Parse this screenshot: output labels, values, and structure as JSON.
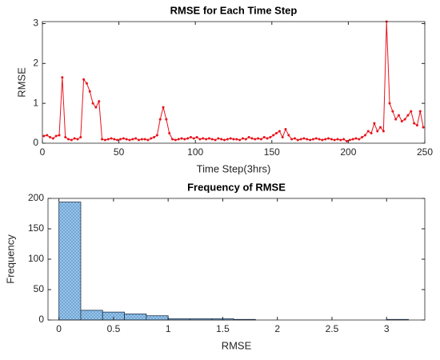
{
  "chart_data": [
    {
      "type": "line",
      "title": "RMSE for Each Time Step",
      "xlabel": "Time Step(3hrs)",
      "ylabel": "RMSE",
      "color": "#e8141c",
      "x": [
        1,
        3,
        5,
        7,
        9,
        11,
        13,
        15,
        17,
        19,
        21,
        23,
        25,
        27,
        29,
        31,
        33,
        35,
        37,
        39,
        41,
        43,
        45,
        47,
        49,
        51,
        53,
        55,
        57,
        59,
        61,
        63,
        65,
        67,
        69,
        71,
        73,
        75,
        77,
        79,
        81,
        83,
        85,
        87,
        89,
        91,
        93,
        95,
        97,
        99,
        101,
        103,
        105,
        107,
        109,
        111,
        113,
        115,
        117,
        119,
        121,
        123,
        125,
        127,
        129,
        131,
        133,
        135,
        137,
        139,
        141,
        143,
        145,
        147,
        149,
        151,
        153,
        155,
        157,
        159,
        161,
        163,
        165,
        167,
        169,
        171,
        173,
        175,
        177,
        179,
        181,
        183,
        185,
        187,
        189,
        191,
        193,
        195,
        197,
        199,
        201,
        203,
        205,
        207,
        209,
        211,
        213,
        215,
        217,
        219,
        221,
        223,
        225,
        227,
        229,
        231,
        233,
        235,
        237,
        239,
        241,
        243,
        245,
        247,
        249
      ],
      "values": [
        0.18,
        0.2,
        0.15,
        0.12,
        0.18,
        0.2,
        1.65,
        0.15,
        0.1,
        0.08,
        0.12,
        0.1,
        0.15,
        1.6,
        1.5,
        1.3,
        1.0,
        0.9,
        1.05,
        0.1,
        0.08,
        0.1,
        0.12,
        0.1,
        0.08,
        0.1,
        0.12,
        0.1,
        0.08,
        0.1,
        0.12,
        0.08,
        0.1,
        0.1,
        0.08,
        0.12,
        0.15,
        0.2,
        0.6,
        0.9,
        0.6,
        0.25,
        0.1,
        0.08,
        0.1,
        0.12,
        0.1,
        0.12,
        0.15,
        0.12,
        0.15,
        0.1,
        0.12,
        0.1,
        0.12,
        0.1,
        0.08,
        0.12,
        0.1,
        0.08,
        0.1,
        0.12,
        0.1,
        0.1,
        0.08,
        0.12,
        0.1,
        0.15,
        0.12,
        0.1,
        0.12,
        0.1,
        0.15,
        0.12,
        0.15,
        0.2,
        0.25,
        0.3,
        0.15,
        0.35,
        0.2,
        0.1,
        0.12,
        0.08,
        0.1,
        0.12,
        0.1,
        0.08,
        0.1,
        0.12,
        0.1,
        0.08,
        0.1,
        0.12,
        0.1,
        0.08,
        0.1,
        0.08,
        0.1,
        0.05,
        0.08,
        0.1,
        0.12,
        0.1,
        0.15,
        0.2,
        0.3,
        0.25,
        0.5,
        0.3,
        0.4,
        0.3,
        3.05,
        1.0,
        0.8,
        0.6,
        0.7,
        0.55,
        0.6,
        0.7,
        0.8,
        0.5,
        0.45,
        0.8,
        0.4
      ],
      "xlim": [
        0,
        250
      ],
      "xticks": [
        0,
        50,
        100,
        150,
        200,
        250
      ],
      "ylim": [
        0,
        3.05
      ],
      "yticks": [
        0,
        1,
        2,
        3
      ]
    },
    {
      "type": "histogram",
      "title": "Frequency of RMSE",
      "xlabel": "RMSE",
      "ylabel": "Frequency",
      "color": "#9ccbee",
      "bins": [
        0,
        0.2,
        0.4,
        0.6,
        0.8,
        1.0,
        1.2,
        1.4,
        1.6,
        1.8,
        2.0,
        2.2,
        2.4,
        2.6,
        2.8,
        3.0,
        3.2
      ],
      "values": [
        194,
        16,
        13,
        10,
        7,
        2,
        2,
        2,
        1,
        0,
        0,
        0,
        0,
        0,
        0,
        1
      ],
      "xlim": [
        -0.1,
        3.35
      ],
      "xticks": [
        0,
        0.5,
        1,
        1.5,
        2,
        2.5,
        3
      ],
      "ylim": [
        0,
        200
      ],
      "yticks": [
        0,
        50,
        100,
        150,
        200
      ]
    }
  ]
}
